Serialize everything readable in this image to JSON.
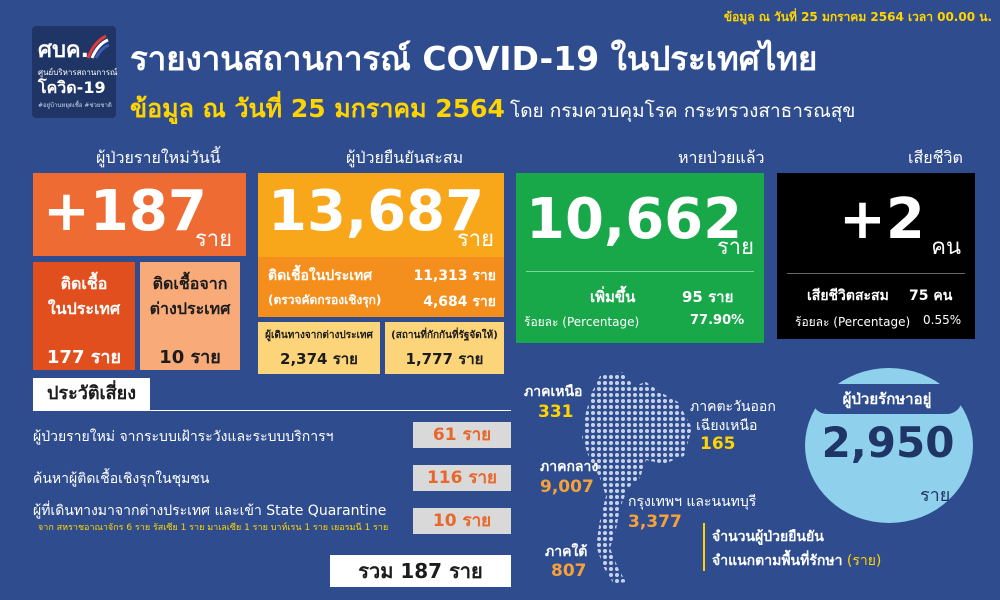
{
  "header": {
    "date_note": "ข้อมูล ณ วันที่ 25 มกราคม 2564 เวลา 00.00 น.",
    "title": "รายงานสถานการณ์ COVID-19 ในประเทศไทย",
    "subtitle_date": "ข้อมูล ณ วันที่ 25 มกราคม 2564",
    "subtitle_source": "โดย กรมควบคุมโรค กระทรวงสาธารณสุข",
    "logo_main": "ศบค.",
    "logo_sub1": "ศูนย์บริหารสถานการณ์",
    "logo_sub2": "โควิด-19",
    "logo_tag": "#อยู่บ้านหยุดเชื้อ #ช่วยชาติ",
    "colors": {
      "background": "#2f4d8e",
      "accent_yellow": "#ffd400"
    }
  },
  "new_cases": {
    "header": "ผู้ป่วยรายใหม่วันนี้",
    "value": "+187",
    "unit": "ราย",
    "domestic_label_1": "ติดเชื้อ",
    "domestic_label_2": "ในประเทศ",
    "domestic_value": "177 ราย",
    "imported_label_1": "ติดเชื้อจาก",
    "imported_label_2": "ต่างประเทศ",
    "imported_value": "10 ราย",
    "color": "#ef6b34"
  },
  "cumulative": {
    "header": "ผู้ป่วยยืนยันสะสม",
    "value": "13,687",
    "unit": "ราย",
    "local_label": "ติดเชื้อในประเทศ",
    "local_value": "11,313 ราย",
    "proactive_label": "(ตรวจคัดกรองเชิงรุก)",
    "proactive_value": "4,684 ราย",
    "travel_label": "ผู้เดินทางจากต่างประเทศ",
    "travel_value": "2,374 ราย",
    "quarantine_label": "(สถานที่กักกันที่รัฐจัดให้)",
    "quarantine_value": "1,777 ราย",
    "color": "#f8a61a"
  },
  "recovered": {
    "header": "หายป่วยแล้ว",
    "value": "10,662",
    "unit": "ราย",
    "increase_label": "เพิ่มขึ้น",
    "increase_value": "95 ราย",
    "pct_label": "ร้อยละ (Percentage)",
    "pct_value": "77.90%",
    "color": "#18a84a"
  },
  "deaths": {
    "header": "เสียชีวิต",
    "value": "+2",
    "unit": "คน",
    "cum_label": "เสียชีวิตสะสม",
    "cum_value": "75 คน",
    "pct_label": "ร้อยละ (Percentage)",
    "pct_value": "0.55%"
  },
  "risk": {
    "header": "ประวัติเสี่ยง",
    "rows": [
      {
        "label": "ผู้ป่วยรายใหม่ จากระบบเฝ้าระวังและระบบบริการฯ",
        "value": "61 ราย"
      },
      {
        "label": "ค้นหาผู้ติดเชื้อเชิงรุกในชุมชน",
        "value": "116 ราย"
      },
      {
        "label": "ผู้ที่เดินทางมาจากต่างประเทศ และเข้า State Quarantine",
        "value": "10 ราย"
      }
    ],
    "note": "จาก สหราชอาณาจักร 6 ราย รัสเซีย 1 ราย มาเลเซีย 1 ราย บาห์เรน 1 ราย เยอรมนี 1 ราย",
    "total": "รวม 187 ราย"
  },
  "regions": {
    "north_label": "ภาคเหนือ",
    "north_value": "331",
    "northeast_label_1": "ภาคตะวันออก",
    "northeast_label_2": "เฉียงเหนือ",
    "northeast_value": "165",
    "central_label": "ภาคกลาง",
    "central_value": "9,007",
    "bangkok_label": "กรุงเทพฯ และนนทบุรี",
    "bangkok_value": "3,377",
    "south_label": "ภาคใต้",
    "south_value": "807",
    "caption_1": "จำนวนผู้ป่วยยืนยัน",
    "caption_2a": "จำแนกตามพื้นที่รักษา",
    "caption_2b": "(ราย)"
  },
  "in_treatment": {
    "header": "ผู้ป่วยรักษาอยู่",
    "value": "2,950",
    "unit": "ราย",
    "color": "#8fd0ec"
  }
}
